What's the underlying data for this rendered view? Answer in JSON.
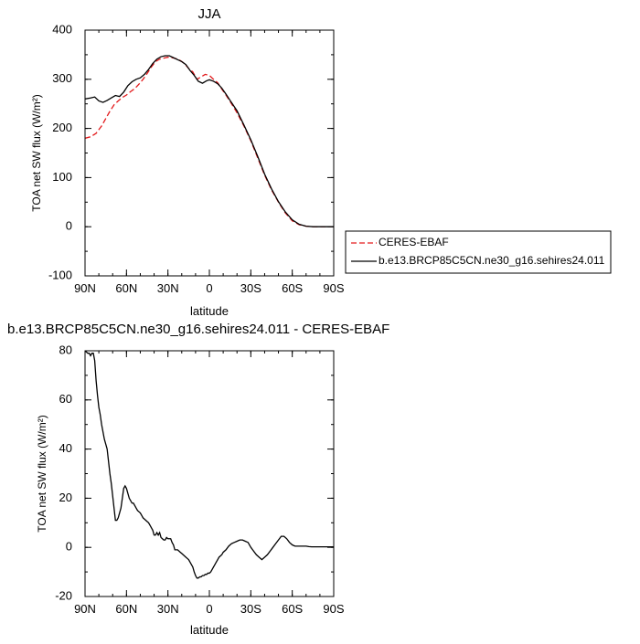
{
  "chart_data": [
    {
      "type": "line",
      "title": "JJA",
      "xlabel": "latitude",
      "ylabel": "TOA net SW flux (W/m²)",
      "xlim": [
        -90,
        90
      ],
      "ylim": [
        -100,
        400
      ],
      "x_ticks": [
        -90,
        -60,
        -30,
        0,
        30,
        60,
        90
      ],
      "x_tick_labels": [
        "90N",
        "60N",
        "30N",
        "0",
        "30S",
        "60S",
        "90S"
      ],
      "y_ticks": [
        -100,
        0,
        100,
        200,
        300,
        400
      ],
      "y_tick_labels": [
        "-100",
        "0",
        "100",
        "200",
        "300",
        "400"
      ],
      "legend_position": "right",
      "series": [
        {
          "name": "CERES-EBAF",
          "color": "#e31a1c",
          "dash": "dashed",
          "x": [
            -90,
            -86,
            -82,
            -78,
            -75,
            -72,
            -69,
            -66,
            -63,
            -60,
            -57,
            -54,
            -51,
            -48,
            -45,
            -42,
            -39,
            -36,
            -33,
            -30,
            -27,
            -24,
            -21,
            -18,
            -15,
            -12,
            -9,
            -6,
            -3,
            0,
            3,
            6,
            9,
            12,
            15,
            20,
            25,
            30,
            35,
            40,
            45,
            50,
            55,
            60,
            65,
            70,
            75,
            80,
            85,
            90
          ],
          "y": [
            180,
            183,
            190,
            205,
            220,
            235,
            248,
            256,
            263,
            268,
            275,
            281,
            290,
            300,
            312,
            325,
            336,
            341,
            343,
            345,
            344,
            342,
            338,
            332,
            322,
            315,
            300,
            305,
            310,
            308,
            300,
            293,
            280,
            268,
            255,
            232,
            205,
            175,
            140,
            105,
            75,
            50,
            28,
            12,
            4,
            1,
            0,
            0,
            0,
            0
          ]
        },
        {
          "name": "b.e13.BRCP85C5CN.ne30_g16.sehires24.011",
          "color": "#000000",
          "dash": "solid",
          "x": [
            -90,
            -86,
            -83,
            -80,
            -77,
            -74,
            -71,
            -68,
            -65,
            -62,
            -59,
            -56,
            -53,
            -50,
            -47,
            -44,
            -41,
            -38,
            -35,
            -32,
            -29,
            -26,
            -23,
            -20,
            -17,
            -14,
            -11,
            -8,
            -5,
            -2,
            0,
            3,
            6,
            9,
            12,
            15,
            20,
            25,
            30,
            35,
            40,
            45,
            50,
            55,
            60,
            65,
            70,
            75,
            80,
            85,
            90
          ],
          "y": [
            260,
            262,
            264,
            256,
            253,
            257,
            262,
            267,
            265,
            274,
            287,
            295,
            300,
            303,
            310,
            320,
            332,
            341,
            346,
            348,
            348,
            344,
            340,
            336,
            330,
            318,
            308,
            296,
            292,
            297,
            299,
            296,
            291,
            282,
            270,
            257,
            236,
            207,
            177,
            143,
            107,
            77,
            51,
            30,
            14,
            5,
            1,
            0,
            0,
            0,
            0
          ]
        }
      ]
    },
    {
      "type": "line",
      "title": "b.e13.BRCP85C5CN.ne30_g16.sehires24.011 - CERES-EBAF",
      "xlabel": "latitude",
      "ylabel": "TOA net SW flux (W/m²)",
      "xlim": [
        -90,
        90
      ],
      "ylim": [
        -20,
        80
      ],
      "x_ticks": [
        -90,
        -60,
        -30,
        0,
        30,
        60,
        90
      ],
      "x_tick_labels": [
        "90N",
        "60N",
        "30N",
        "0",
        "30S",
        "60S",
        "90S"
      ],
      "y_ticks": [
        -20,
        0,
        20,
        40,
        60,
        80
      ],
      "y_tick_labels": [
        "-20",
        "0",
        "20",
        "40",
        "60",
        "80"
      ],
      "series": [
        {
          "color": "#000000",
          "dash": "solid",
          "x": [
            -90,
            -88,
            -87,
            -86,
            -85,
            -84,
            -83,
            -82,
            -81,
            -80,
            -79,
            -78,
            -77,
            -76,
            -75,
            -74,
            -73,
            -72,
            -71,
            -70,
            -69,
            -68,
            -67,
            -66,
            -65,
            -64,
            -63,
            -62,
            -61,
            -60,
            -59,
            -58,
            -57,
            -56,
            -55,
            -54,
            -53,
            -52,
            -51,
            -50,
            -49,
            -48,
            -47,
            -46,
            -45,
            -44,
            -43,
            -42,
            -41,
            -40,
            -39,
            -38,
            -37,
            -36,
            -35,
            -34,
            -33,
            -32,
            -31,
            -30,
            -29,
            -28,
            -27,
            -26,
            -25,
            -24,
            -23,
            -22,
            -21,
            -20,
            -19,
            -18,
            -17,
            -16,
            -15,
            -14,
            -13,
            -12,
            -11,
            -10,
            -9,
            -8,
            -7,
            -6,
            -5,
            -4,
            -3,
            -2,
            -1,
            0,
            1,
            2,
            3,
            4,
            5,
            6,
            7,
            8,
            9,
            10,
            12,
            14,
            16,
            18,
            20,
            22,
            24,
            26,
            28,
            30,
            32,
            34,
            36,
            38,
            40,
            42,
            44,
            46,
            48,
            50,
            52,
            54,
            56,
            58,
            60,
            62,
            64,
            66,
            68,
            70,
            72,
            74,
            76,
            78,
            80,
            82,
            84,
            86,
            88,
            90
          ],
          "y": [
            80,
            79,
            79,
            78,
            79,
            79,
            76,
            68,
            62,
            57,
            54,
            50,
            47,
            44,
            42,
            40,
            35,
            30,
            26,
            21,
            16,
            11,
            11,
            12,
            14,
            16,
            20,
            24,
            25,
            24,
            22,
            20,
            19,
            18,
            18,
            17,
            16,
            15,
            14.5,
            14,
            13,
            12,
            11.5,
            11,
            10.5,
            10,
            9,
            8,
            7,
            5,
            5,
            6,
            5,
            6,
            4,
            3.5,
            3,
            3,
            4,
            3.5,
            3.5,
            3.5,
            2,
            1,
            -1,
            -1,
            -1,
            -1.5,
            -2,
            -2.5,
            -3,
            -3.5,
            -4,
            -4.5,
            -5,
            -6,
            -7,
            -8,
            -10,
            -11.5,
            -12.5,
            -12.5,
            -12,
            -12,
            -11.5,
            -11.5,
            -11,
            -11,
            -10.5,
            -10.5,
            -10,
            -9,
            -8,
            -7,
            -6,
            -5,
            -4,
            -3.5,
            -3,
            -2,
            -1,
            0.5,
            1.5,
            2,
            2.5,
            3,
            3,
            2.5,
            2,
            0,
            -1.5,
            -3,
            -4,
            -5,
            -4,
            -3,
            -1.5,
            0,
            1.5,
            3,
            4.5,
            4.5,
            3.5,
            2,
            1,
            0.5,
            0.5,
            0.5,
            0.5,
            0.5,
            0.3,
            0.2,
            0.2,
            0.2,
            0.2,
            0.2,
            0.2,
            0.2,
            0.2,
            0.2
          ]
        }
      ]
    }
  ]
}
